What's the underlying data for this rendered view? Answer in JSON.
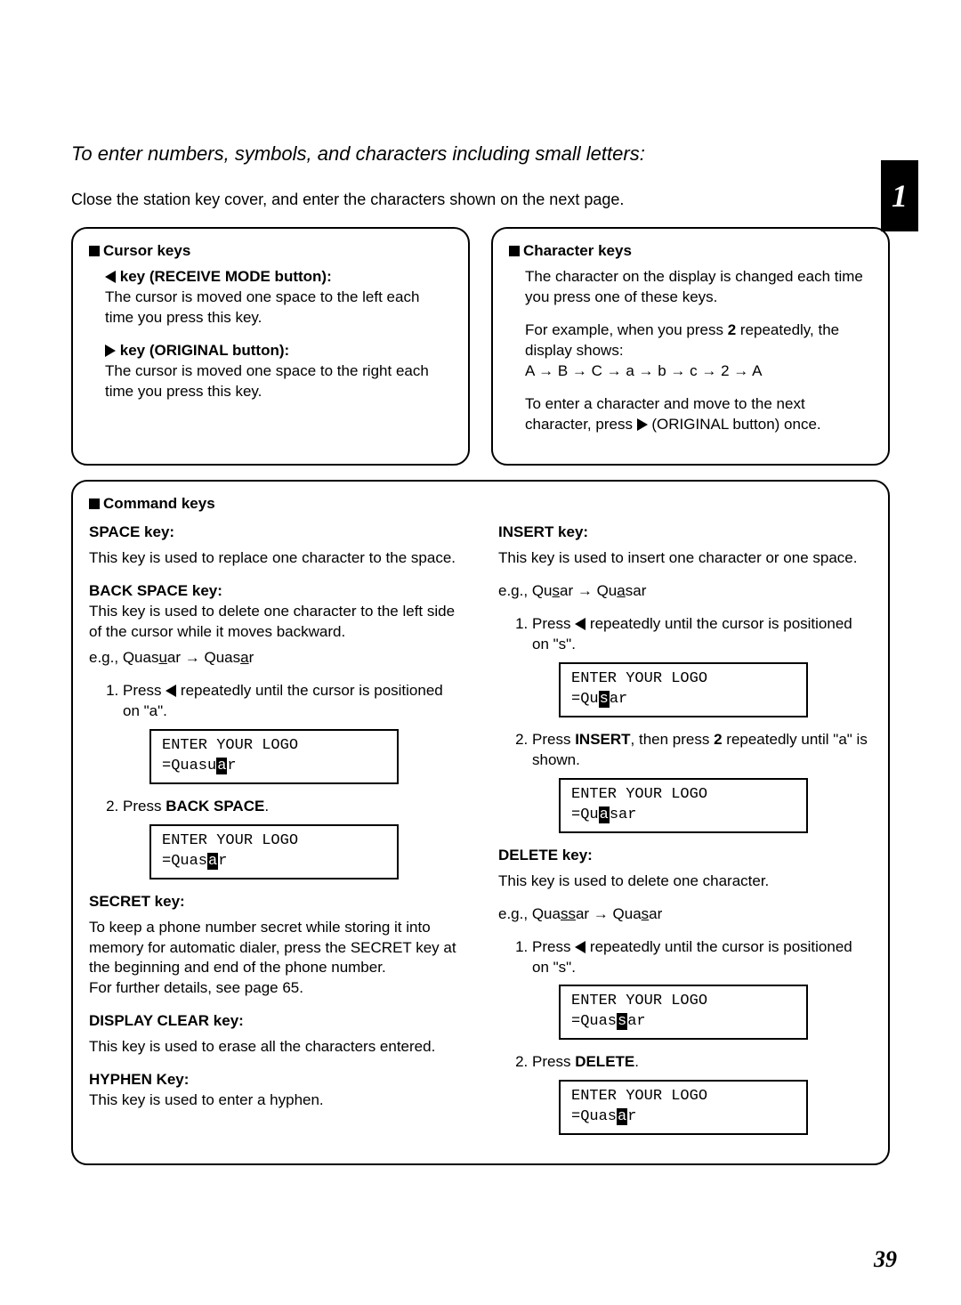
{
  "page_number": "39",
  "tab_number": "1",
  "section_title": "To enter numbers, symbols, and characters including small letters:",
  "intro": "Close the station key cover, and enter the characters shown on the next page.",
  "cursor_box": {
    "heading": "Cursor keys",
    "left_key_title": "key (RECEIVE MODE button):",
    "left_key_text": "The cursor is moved one space to the left each time you press this key.",
    "right_key_title": "key (ORIGINAL button):",
    "right_key_text": "The cursor is moved one space to the right each time you press this key."
  },
  "char_box": {
    "heading": "Character keys",
    "p1": "The character on the display is changed each time you press one of these keys.",
    "p2a": "For example, when you press ",
    "p2_key": "2",
    "p2b": " repeatedly, the display shows:",
    "sequence": "A → B → C → a → b → c → 2 → A",
    "p3a": "To enter a character and move to the next character, press ",
    "p3b": " (ORIGINAL button) once."
  },
  "command_box": {
    "heading": "Command keys",
    "space": {
      "title": "SPACE key:",
      "text": "This key is used to replace one character to the space."
    },
    "backspace": {
      "title": "BACK SPACE key:",
      "text": "This key is used to delete one character to the left side of the cursor while it moves backward.",
      "example_label": "e.g., Quasuar → Quasar",
      "ex_from_pre": "Quas",
      "ex_from_u": "u",
      "ex_from_post": "ar",
      "ex_to_pre": "Quas",
      "ex_to_u": "a",
      "ex_to_post": "r",
      "step1a": "Press ",
      "step1b": " repeatedly until the cursor is positioned on \"a\".",
      "lcd1_line1": "ENTER YOUR LOGO",
      "lcd1_pre": "=Quasu",
      "lcd1_cur": "a",
      "lcd1_post": "r",
      "step2a": "Press ",
      "step2_key": "BACK SPACE",
      "step2b": ".",
      "lcd2_line1": "ENTER YOUR LOGO",
      "lcd2_pre": "=Quas",
      "lcd2_cur": "a",
      "lcd2_post": "r"
    },
    "secret": {
      "title": "SECRET key:",
      "text": "To keep a phone number secret while storing it into memory for automatic dialer, press the SECRET key at the beginning and end of the phone number.\nFor further details, see page 65."
    },
    "display_clear": {
      "title": "DISPLAY CLEAR key:",
      "text": "This key is used to erase all the characters entered."
    },
    "hyphen": {
      "title": "HYPHEN Key:",
      "text": "This key is used to enter a hyphen."
    },
    "insert": {
      "title": "INSERT key:",
      "text": "This key is used to insert one character or one space.",
      "example_label": "e.g., Qusar → Quasar",
      "ex_from_pre": "Qu",
      "ex_from_u": "s",
      "ex_from_post": "ar",
      "ex_to_pre": "Qu",
      "ex_to_u": "a",
      "ex_to_post": "sar",
      "step1a": "Press ",
      "step1b": " repeatedly until the cursor is positioned on \"s\".",
      "lcd1_line1": "ENTER YOUR LOGO",
      "lcd1_pre": "=Qu",
      "lcd1_cur": "s",
      "lcd1_post": "ar",
      "step2a": "Press ",
      "step2_key1": "INSERT",
      "step2b": ", then press ",
      "step2_key2": "2",
      "step2c": " repeatedly until \"a\" is shown.",
      "lcd2_line1": "ENTER YOUR LOGO",
      "lcd2_pre": "=Qu",
      "lcd2_cur": "a",
      "lcd2_post": "sar"
    },
    "delete": {
      "title": "DELETE key:",
      "text": "This key is used to delete one character.",
      "example_label": "e.g., Quassar → Quasar",
      "ex_from_pre": "Qua",
      "ex_from_u": "ss",
      "ex_from_post": "ar",
      "ex_to_pre": "Qua",
      "ex_to_u": "s",
      "ex_to_post": "ar",
      "step1a": "Press ",
      "step1b": " repeatedly until the cursor is positioned on \"s\".",
      "lcd1_line1": "ENTER YOUR LOGO",
      "lcd1_pre": "=Quas",
      "lcd1_cur": "s",
      "lcd1_post": "ar",
      "step2a": "Press ",
      "step2_key": "DELETE",
      "step2b": ".",
      "lcd2_line1": "ENTER YOUR LOGO",
      "lcd2_pre": "=Quas",
      "lcd2_cur": "a",
      "lcd2_post": "r"
    }
  }
}
